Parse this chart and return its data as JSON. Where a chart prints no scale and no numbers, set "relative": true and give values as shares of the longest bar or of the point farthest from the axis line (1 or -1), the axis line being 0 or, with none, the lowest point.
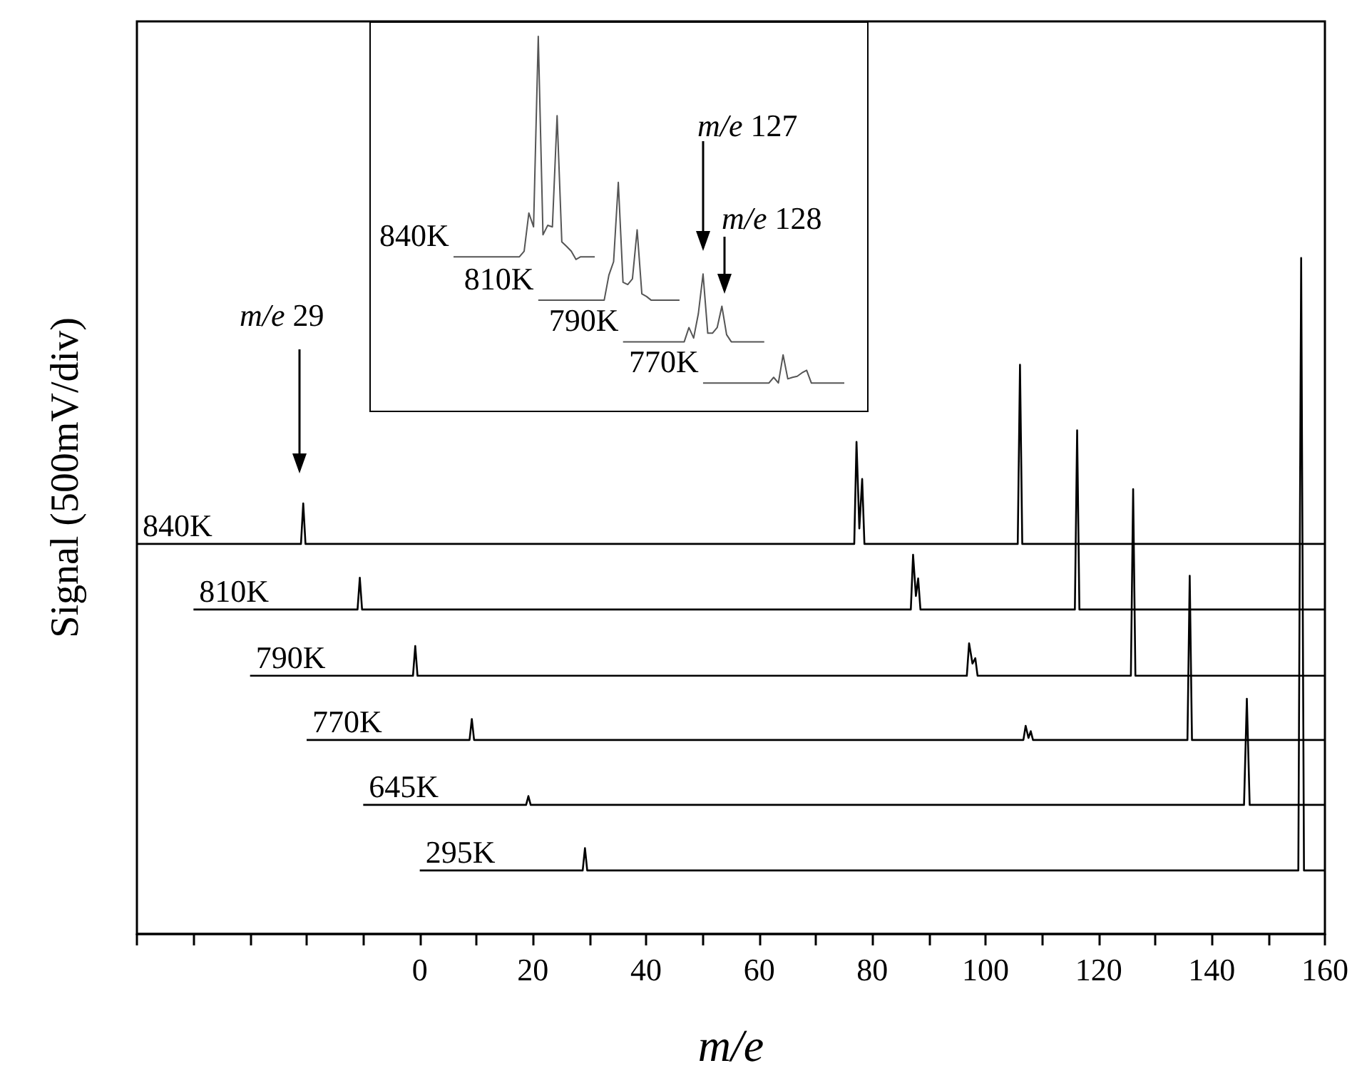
{
  "chart_data": [
    {
      "type": "line",
      "relative": true,
      "xlabel": "m/e",
      "ylabel": "Signal (500mV/div)",
      "xlim": [
        -50,
        160
      ],
      "tick_labels": "x",
      "xticks": [
        {
          "value": -50,
          "label": null
        },
        {
          "value": -40,
          "label": null
        },
        {
          "value": -30,
          "label": null
        },
        {
          "value": -20,
          "label": null
        },
        {
          "value": -10,
          "label": null
        },
        0,
        {
          "value": 10,
          "label": null
        },
        20,
        {
          "value": 30,
          "label": null
        },
        40,
        {
          "value": 50,
          "label": null
        },
        60,
        {
          "value": 70,
          "label": null
        },
        80,
        {
          "value": 90,
          "label": null
        },
        100,
        {
          "value": 110,
          "label": null
        },
        120,
        {
          "value": 130,
          "label": null
        },
        140,
        {
          "value": 150,
          "label": null
        },
        160
      ],
      "annotations": [
        "m/e 29"
      ],
      "series": [
        {
          "name": "840K",
          "color": "#000000",
          "x": [
            -50,
            -21,
            -20.6,
            -20.2,
            76.8,
            77.2,
            77.7,
            78.2,
            78.6,
            105.7,
            106.1,
            106.5,
            160
          ],
          "values": [
            0.577,
            0.577,
            0.637,
            0.577,
            0.577,
            0.728,
            0.6,
            0.673,
            0.577,
            0.577,
            0.842,
            0.577,
            0.577
          ]
        },
        {
          "name": "810K",
          "color": "#000000",
          "x": [
            -40,
            -11,
            -10.6,
            -10.2,
            86.8,
            87.2,
            87.7,
            88.1,
            88.5,
            115.8,
            116.2,
            116.6,
            160
          ],
          "values": [
            0.48,
            0.48,
            0.527,
            0.48,
            0.48,
            0.561,
            0.5,
            0.526,
            0.48,
            0.48,
            0.745,
            0.48,
            0.48
          ]
        },
        {
          "name": "790K",
          "color": "#000000",
          "x": [
            -30,
            -1.2,
            -0.8,
            -0.4,
            96.7,
            97.1,
            97.7,
            98.2,
            98.6,
            125.7,
            126.1,
            126.5,
            160
          ],
          "values": [
            0.382,
            0.382,
            0.426,
            0.382,
            0.382,
            0.43,
            0.4,
            0.408,
            0.382,
            0.382,
            0.658,
            0.382,
            0.382
          ]
        },
        {
          "name": "770K",
          "color": "#000000",
          "x": [
            -20,
            8.8,
            9.2,
            9.6,
            106.7,
            107.1,
            107.6,
            108,
            108.4,
            135.7,
            136.1,
            136.5,
            160
          ],
          "values": [
            0.287,
            0.287,
            0.318,
            0.287,
            0.287,
            0.308,
            0.29,
            0.3,
            0.287,
            0.287,
            0.53,
            0.287,
            0.287
          ]
        },
        {
          "name": "645K",
          "color": "#000000",
          "x": [
            -10,
            18.8,
            19.2,
            19.6,
            145.7,
            146.2,
            146.7,
            160
          ],
          "values": [
            0.191,
            0.191,
            0.204,
            0.191,
            0.191,
            0.348,
            0.191,
            0.191
          ]
        },
        {
          "name": "295K",
          "color": "#000000",
          "x": [
            0,
            28.8,
            29.2,
            29.6,
            155.3,
            155.8,
            156.3,
            160
          ],
          "values": [
            0.094,
            0.094,
            0.127,
            0.094,
            0.094,
            1,
            0.094,
            0.094
          ]
        }
      ]
    },
    {
      "type": "line",
      "relative": true,
      "tick_labels": false,
      "categories": [
        null,
        null,
        null,
        null,
        null,
        null,
        null,
        null,
        null,
        null,
        null,
        null,
        null,
        null,
        null,
        null,
        null,
        null,
        null,
        null,
        null,
        null,
        null,
        null,
        null,
        null,
        null,
        null,
        null,
        null,
        null,
        null,
        null,
        null,
        null,
        null,
        null,
        null,
        null,
        null,
        null,
        null,
        null,
        null,
        null,
        null,
        null,
        null,
        null,
        null,
        null,
        null,
        null,
        null,
        null,
        null,
        null,
        null,
        null,
        null,
        null,
        null,
        null,
        null,
        null,
        null,
        null,
        null,
        null,
        null,
        null,
        null,
        null,
        null,
        null,
        null,
        null,
        null,
        null,
        null,
        null,
        null,
        null,
        null
      ],
      "annotations": [
        "m/e 127",
        "m/e 128"
      ],
      "series": [
        {
          "name": "840K",
          "color": "#555555",
          "values": [
            0.411,
            0.411,
            0.411,
            0.411,
            0.411,
            0.411,
            0.411,
            0.411,
            0.411,
            0.411,
            0.411,
            0.411,
            0.411,
            0.411,
            0.411,
            0.426,
            0.528,
            0.491,
            1,
            0.47,
            0.495,
            0.491,
            0.788,
            0.451,
            0.439,
            0.426,
            0.404,
            0.411,
            0.411,
            0.411,
            0.411,
            null,
            null,
            null,
            null,
            null,
            null,
            null,
            null,
            null,
            null,
            null,
            null,
            null,
            null,
            null,
            null,
            null,
            null,
            null,
            null,
            null,
            null,
            null,
            null,
            null,
            null,
            null,
            null,
            null,
            null,
            null,
            null,
            null,
            null,
            null,
            null,
            null,
            null,
            null,
            null,
            null,
            null,
            null,
            null,
            null,
            null,
            null,
            null,
            null,
            null,
            null,
            null,
            null
          ]
        },
        {
          "name": "810K",
          "color": "#555555",
          "values": [
            null,
            null,
            null,
            null,
            null,
            null,
            null,
            null,
            null,
            null,
            null,
            null,
            null,
            null,
            null,
            null,
            null,
            null,
            0.295,
            0.295,
            0.295,
            0.295,
            0.295,
            0.295,
            0.295,
            0.295,
            0.295,
            0.295,
            0.295,
            0.295,
            0.295,
            0.295,
            0.295,
            0.362,
            0.398,
            0.61,
            0.343,
            0.337,
            0.352,
            0.483,
            0.312,
            0.305,
            0.295,
            0.295,
            0.295,
            0.295,
            0.295,
            0.295,
            0.295,
            null,
            null,
            null,
            null,
            null,
            null,
            null,
            null,
            null,
            null,
            null,
            null,
            null,
            null,
            null,
            null,
            null,
            null,
            null,
            null,
            null,
            null,
            null,
            null,
            null,
            null,
            null,
            null,
            null,
            null,
            null,
            null,
            null,
            null,
            null
          ]
        },
        {
          "name": "790K",
          "color": "#555555",
          "values": [
            null,
            null,
            null,
            null,
            null,
            null,
            null,
            null,
            null,
            null,
            null,
            null,
            null,
            null,
            null,
            null,
            null,
            null,
            null,
            null,
            null,
            null,
            null,
            null,
            null,
            null,
            null,
            null,
            null,
            null,
            null,
            null,
            null,
            null,
            null,
            null,
            0.184,
            0.184,
            0.184,
            0.184,
            0.184,
            0.184,
            0.184,
            0.184,
            0.184,
            0.184,
            0.184,
            0.184,
            0.184,
            0.184,
            0.222,
            0.194,
            0.259,
            0.365,
            0.207,
            0.207,
            0.222,
            0.279,
            0.203,
            0.184,
            0.184,
            0.184,
            0.184,
            0.184,
            0.184,
            0.184,
            0.184,
            null,
            null,
            null,
            null,
            null,
            null,
            null,
            null,
            null,
            null,
            null,
            null,
            null,
            null,
            null,
            null,
            null
          ]
        },
        {
          "name": "770K",
          "color": "#555555",
          "values": [
            null,
            null,
            null,
            null,
            null,
            null,
            null,
            null,
            null,
            null,
            null,
            null,
            null,
            null,
            null,
            null,
            null,
            null,
            null,
            null,
            null,
            null,
            null,
            null,
            null,
            null,
            null,
            null,
            null,
            null,
            null,
            null,
            null,
            null,
            null,
            null,
            null,
            null,
            null,
            null,
            null,
            null,
            null,
            null,
            null,
            null,
            null,
            null,
            null,
            null,
            null,
            null,
            null,
            0.074,
            0.074,
            0.074,
            0.074,
            0.074,
            0.074,
            0.074,
            0.074,
            0.074,
            0.074,
            0.074,
            0.074,
            0.074,
            0.074,
            0.074,
            0.089,
            0.074,
            0.149,
            0.085,
            0.089,
            0.092,
            0.101,
            0.108,
            0.074,
            0.074,
            0.074,
            0.074,
            0.074,
            0.074,
            0.074,
            0.074
          ]
        }
      ]
    }
  ]
}
